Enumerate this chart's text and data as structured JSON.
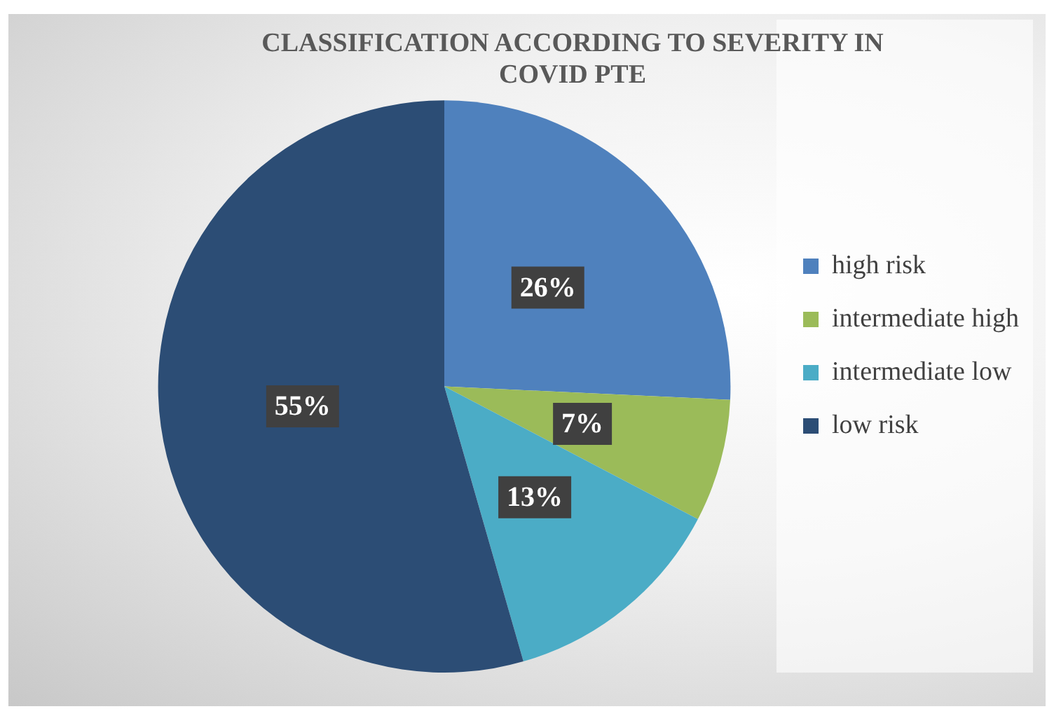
{
  "chart_data": {
    "type": "pie",
    "title": "CLASSIFICATION ACCORDING TO SEVERITY IN COVID PTE",
    "categories": [
      "high risk",
      "intermediate high",
      "intermediate low",
      "low risk"
    ],
    "values": [
      26,
      7,
      13,
      55
    ],
    "colors": [
      "#4f81bd",
      "#9bbb59",
      "#4bacc6",
      "#2c4d75"
    ],
    "value_labels": [
      "26%",
      "7%",
      "13%",
      "55%"
    ],
    "legend": "right"
  }
}
